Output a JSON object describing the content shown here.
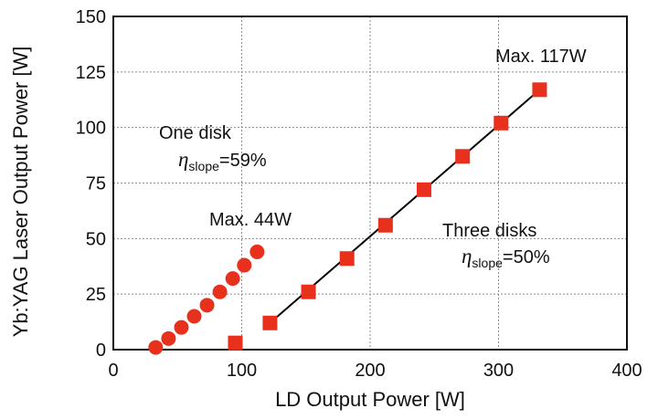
{
  "chart_data": {
    "type": "scatter",
    "xlabel": "LD Output Power [W]",
    "ylabel": "Yb:YAG Laser Output Power [W]",
    "xlim": [
      0,
      400
    ],
    "ylim": [
      0,
      150
    ],
    "xticks": [
      "0",
      "100",
      "200",
      "300",
      "400"
    ],
    "yticks": [
      "0",
      "25",
      "50",
      "75",
      "100",
      "125",
      "150"
    ],
    "grid": true,
    "series": [
      {
        "marker": "circle",
        "color": "#e8311c",
        "points": [
          [
            33,
            1
          ],
          [
            43,
            5
          ],
          [
            53,
            10
          ],
          [
            63,
            15
          ],
          [
            73,
            20
          ],
          [
            83,
            26
          ],
          [
            93,
            32
          ],
          [
            102,
            38
          ],
          [
            112,
            44
          ]
        ]
      },
      {
        "marker": "square",
        "color": "#e8311c",
        "points": [
          [
            95,
            3
          ],
          [
            122,
            12
          ],
          [
            152,
            26
          ],
          [
            182,
            41
          ],
          [
            212,
            56
          ],
          [
            242,
            72
          ],
          [
            272,
            87
          ],
          [
            302,
            102
          ],
          [
            332,
            117
          ]
        ]
      }
    ],
    "fits": [
      {
        "x": [
          122,
          332
        ],
        "y": [
          12,
          117
        ],
        "color": "#000000"
      }
    ],
    "annotations": {
      "one_disk_label": "One disk",
      "one_disk_eta": "η",
      "one_disk_sub": "slope",
      "one_disk_value": "=59%",
      "one_disk_max": "Max. 44W",
      "three_disk_label": "Three disks",
      "three_disk_eta": "η",
      "three_disk_sub": "slope",
      "three_disk_value": "=50%",
      "three_disk_max": "Max. 117W"
    }
  }
}
